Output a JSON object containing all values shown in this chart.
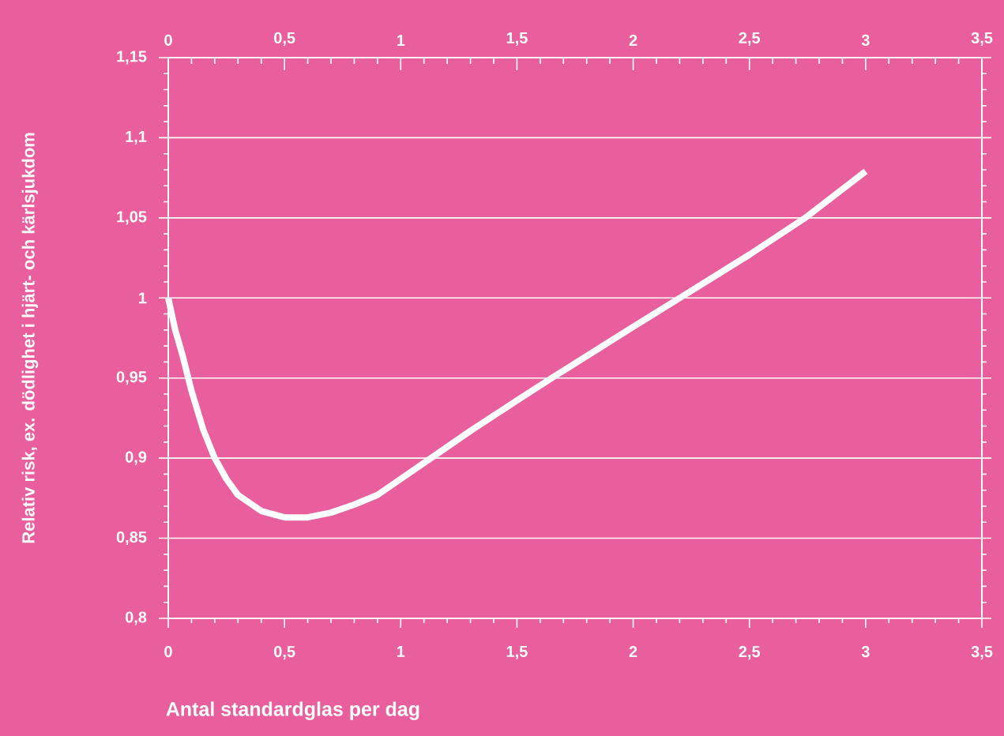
{
  "chart_data": {
    "type": "line",
    "xlabel": "Antal standardglas per dag",
    "ylabel": "Relativ risk, ex. dödlighet i hjärt- och kärlsjukdom",
    "x": [
      0,
      0.03,
      0.06,
      0.1,
      0.15,
      0.2,
      0.25,
      0.3,
      0.4,
      0.5,
      0.6,
      0.7,
      0.8,
      0.9,
      1.0,
      1.13,
      1.3,
      1.5,
      1.65,
      2.0,
      2.2,
      2.5,
      2.74,
      3.0
    ],
    "series": [
      {
        "color": "#ffffff",
        "values": [
          1.0,
          0.98,
          0.965,
          0.942,
          0.918,
          0.9,
          0.887,
          0.877,
          0.867,
          0.863,
          0.863,
          0.866,
          0.871,
          0.877,
          0.887,
          0.9,
          0.917,
          0.936,
          0.95,
          0.982,
          1.0,
          1.027,
          1.05,
          1.079
        ]
      }
    ],
    "xlim": [
      0,
      3.5
    ],
    "xticks": [
      0,
      {
        "value": 0.5,
        "label": "0,5"
      },
      1,
      {
        "value": 1.5,
        "label": "1,5"
      },
      2,
      {
        "value": 2.5,
        "label": "2,5"
      },
      3,
      {
        "value": 3.5,
        "label": "3,5"
      }
    ],
    "x2lim": [
      0,
      3.5
    ],
    "x2ticks": [
      0,
      {
        "value": 0.5,
        "label": "0,5"
      },
      1,
      {
        "value": 1.5,
        "label": "1,5"
      },
      2,
      {
        "value": 2.5,
        "label": "2,5"
      },
      3,
      {
        "value": 3.5,
        "label": "3,5"
      }
    ],
    "ylim": [
      0.8,
      1.15
    ],
    "yticks": [
      {
        "value": 0.8,
        "label": "0,8"
      },
      {
        "value": 0.85,
        "label": "0,85"
      },
      {
        "value": 0.9,
        "label": "0,9"
      },
      {
        "value": 0.95,
        "label": "0,95"
      },
      1,
      {
        "value": 1.05,
        "label": "1,05"
      },
      {
        "value": 1.1,
        "label": "1,1"
      },
      {
        "value": 1.15,
        "label": "1,15"
      }
    ],
    "grid": "y",
    "marker": "none",
    "line_style": "solid"
  }
}
